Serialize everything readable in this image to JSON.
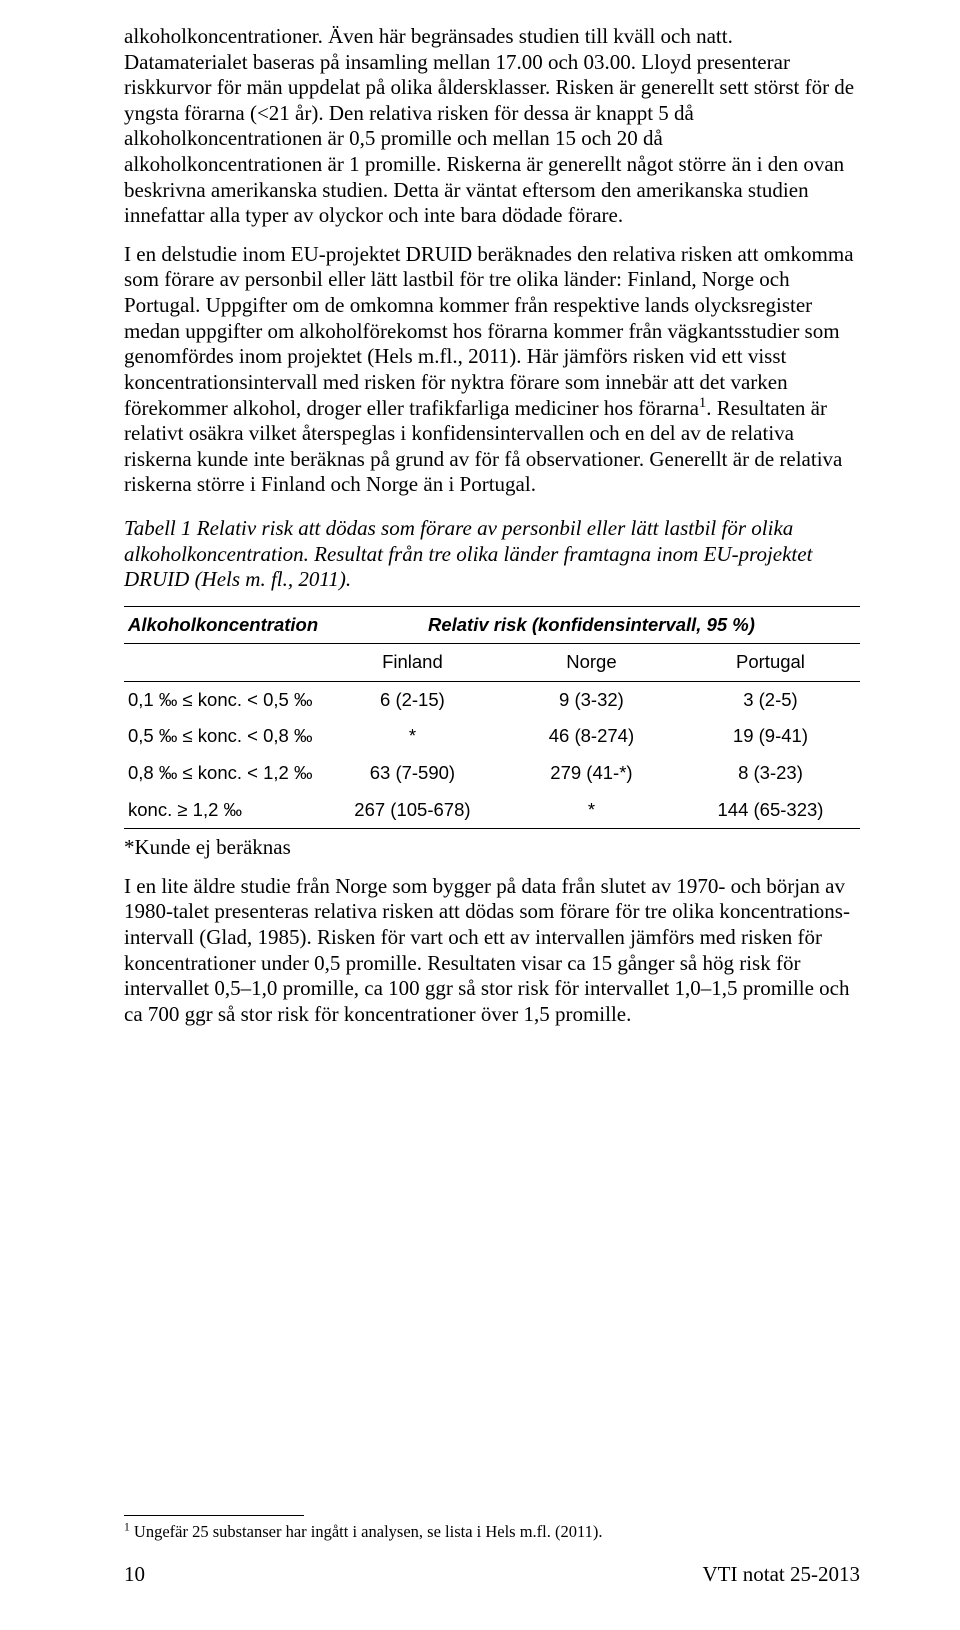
{
  "paragraphs": {
    "p1": "alkoholkoncentrationer. Även här begränsades studien till kväll och natt. Datamaterialet baseras på insamling mellan 17.00 och 03.00. Lloyd presenterar riskkurvor för män uppdelat på olika åldersklasser. Risken är generellt sett störst för de yngsta förarna (<21 år). Den relativa risken för dessa är knappt 5 då alkoholkoncentrationen är 0,5 promille och mellan 15 och 20 då alkoholkoncentrationen är 1 promille. Riskerna är generellt något större än i den ovan beskrivna amerikanska studien. Detta är väntat eftersom den amerikanska studien innefattar alla typer av olyckor och inte bara dödade förare.",
    "p2a": "I en delstudie inom EU-projektet DRUID beräknades den relativa risken att omkomma som förare av personbil eller lätt lastbil för tre olika länder: Finland, Norge och Portugal. Uppgifter om de omkomna kommer från respektive lands olycksregister medan uppgifter om alkoholförekomst hos förarna kommer från vägkantsstudier som genomfördes inom projektet (Hels m.fl., 2011). Här jämförs risken vid ett visst koncentrationsintervall med risken för nyktra förare som innebär att det varken förekommer alkohol, droger eller trafikfarliga mediciner hos förarna",
    "p2b": ". Resultaten är relativt osäkra vilket återspeglas i konfidensintervallen och en del av de relativa riskerna kunde inte beräknas på grund av för få observationer. Generellt är de relativa riskerna större i Finland och Norge än i Portugal.",
    "caption": "Tabell 1 Relativ risk att dödas som förare av personbil eller lätt lastbil för olika alkoholkoncentration. Resultat från tre olika länder framtagna inom EU-projektet DRUID (Hels m. fl., 2011).",
    "note": "*Kunde ej beräknas",
    "p3": "I en lite äldre studie från Norge som bygger på data från slutet av 1970- och början av 1980-talet presenteras relativa risken att dödas som förare för tre olika koncentrations-intervall (Glad, 1985). Risken för vart och ett av intervallen jämförs med risken för koncentrationer under 0,5 promille. Resultaten visar ca 15 gånger så hög risk för intervallet 0,5–1,0 promille, ca 100 ggr så stor risk för intervallet 1,0–1,5 promille och ca 700 ggr så stor risk för koncentrationer över 1,5 promille."
  },
  "table": {
    "col_header_left": "Alkoholkoncentration",
    "col_header_right": "Relativ risk (konfidensintervall, 95 %)",
    "sub_headers": [
      "Finland",
      "Norge",
      "Portugal"
    ],
    "rows": [
      {
        "label": "0,1 ‰ ≤ konc. < 0,5 ‰",
        "vals": [
          "6 (2-15)",
          "9 (3-32)",
          "3 (2-5)"
        ]
      },
      {
        "label": "0,5 ‰ ≤ konc. < 0,8 ‰",
        "vals": [
          "*",
          "46 (8-274)",
          "19 (9-41)"
        ]
      },
      {
        "label": "0,8 ‰ ≤ konc. < 1,2 ‰",
        "vals": [
          "63 (7-590)",
          "279 (41-*)",
          "8 (3-23)"
        ]
      },
      {
        "label": "konc. ≥ 1,2 ‰",
        "vals": [
          "267 (105-678)",
          "*",
          "144 (65-323)"
        ]
      }
    ]
  },
  "footnote": {
    "marker": "1",
    "text": " Ungefär 25 substanser har ingått i analysen, se lista i Hels m.fl. (2011)."
  },
  "footer": {
    "page": "10",
    "doc": "VTI notat 25-2013"
  }
}
